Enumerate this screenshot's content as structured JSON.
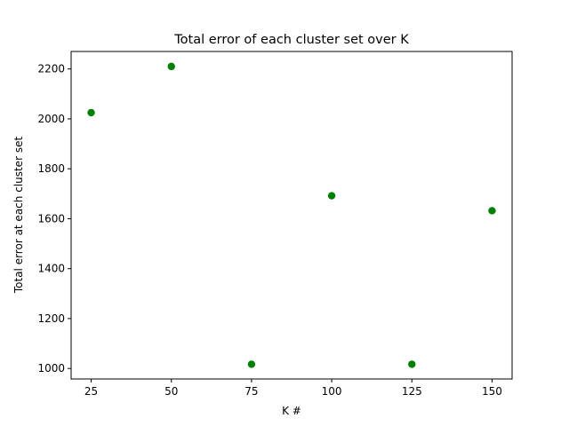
{
  "chart_data": {
    "type": "scatter",
    "title": "Total error of each cluster set over K",
    "xlabel": "K #",
    "ylabel": "Total error at each cluster set",
    "x": [
      25,
      50,
      75,
      100,
      125,
      150
    ],
    "y": [
      2025,
      2210,
      1017,
      1692,
      1017,
      1632
    ],
    "xlim": [
      18.75,
      156.25
    ],
    "ylim": [
      958,
      2270
    ],
    "x_ticks": [
      25,
      50,
      75,
      100,
      125,
      150
    ],
    "y_ticks": [
      1000,
      1200,
      1400,
      1600,
      1800,
      2000,
      2200
    ],
    "x_tick_labels": [
      "25",
      "50",
      "75",
      "100",
      "125",
      "150"
    ],
    "y_tick_labels": [
      "1000",
      "1200",
      "1400",
      "1600",
      "1800",
      "2000",
      "2200"
    ],
    "marker_color": "#008000",
    "grid": false,
    "legend": false
  }
}
